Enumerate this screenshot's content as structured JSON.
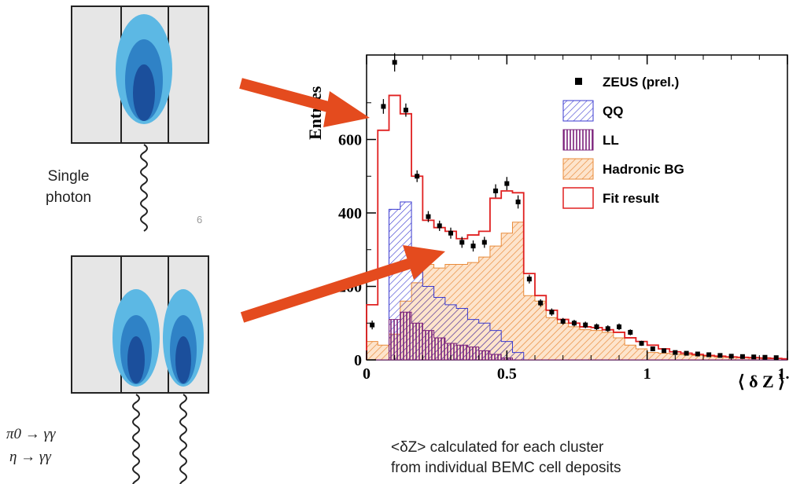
{
  "figure": {
    "single_photon_label": [
      "Single",
      "photon"
    ],
    "slide_number": "6",
    "decay_pi": "π0 → γγ",
    "decay_eta": "η → γγ",
    "caption": [
      "<δZ> calculated for each cluster",
      "from individual BEMC cell deposits"
    ]
  },
  "colors": {
    "cell_bg": "#e6e6e6",
    "blob_light": "#5cb8e4",
    "blob_mid": "#2f82c6",
    "blob_dark": "#1b4f9c",
    "arrow": "#e44b1e",
    "fit": "#e02020",
    "qq": "#3a3ad0",
    "ll": "#7a1f7a",
    "hadronic": "#e98b3a"
  },
  "chart_data": {
    "type": "histogram",
    "xlabel": "⟨ δ Z ⟩",
    "ylabel": "Entries",
    "xlim": [
      0,
      1.5
    ],
    "ylim": [
      0,
      830
    ],
    "x_ticks": [
      "0",
      "0.5",
      "1",
      "1.5"
    ],
    "y_ticks": [
      "0",
      "200",
      "400",
      "600"
    ],
    "bin_edges": [
      0,
      0.04,
      0.08,
      0.12,
      0.16,
      0.2,
      0.24,
      0.28,
      0.32,
      0.36,
      0.4,
      0.44,
      0.48,
      0.52,
      0.56,
      0.6,
      0.64,
      0.68,
      0.72,
      0.76,
      0.8,
      0.84,
      0.88,
      0.92,
      0.96,
      1.0,
      1.04,
      1.08,
      1.12,
      1.16,
      1.2,
      1.24,
      1.28,
      1.32,
      1.36,
      1.4,
      1.44,
      1.48,
      1.5
    ],
    "series": [
      {
        "name": "Hadronic BG",
        "values": [
          50,
          40,
          70,
          160,
          210,
          260,
          250,
          260,
          260,
          265,
          280,
          310,
          345,
          375,
          175,
          160,
          115,
          100,
          90,
          82,
          80,
          75,
          60,
          40,
          30,
          20,
          18,
          16,
          14,
          12,
          10,
          8,
          7,
          6,
          5,
          4,
          4,
          3
        ]
      },
      {
        "name": "QQ",
        "values": [
          0,
          0,
          410,
          430,
          270,
          200,
          170,
          150,
          140,
          110,
          100,
          80,
          50,
          20,
          0,
          0,
          0,
          0,
          0,
          0,
          0,
          0,
          0,
          0,
          0,
          0,
          0,
          0,
          0,
          0,
          0,
          0,
          0,
          0,
          0,
          0,
          0,
          0
        ]
      },
      {
        "name": "LL",
        "values": [
          0,
          0,
          110,
          130,
          100,
          80,
          60,
          45,
          40,
          35,
          25,
          15,
          5,
          0,
          0,
          0,
          0,
          0,
          0,
          0,
          0,
          0,
          0,
          0,
          0,
          0,
          0,
          0,
          0,
          0,
          0,
          0,
          0,
          0,
          0,
          0,
          0,
          0
        ]
      },
      {
        "name": "Fit result",
        "values": [
          150,
          625,
          720,
          670,
          500,
          380,
          360,
          350,
          330,
          340,
          350,
          440,
          460,
          455,
          235,
          175,
          135,
          110,
          100,
          90,
          88,
          82,
          75,
          60,
          50,
          40,
          30,
          22,
          18,
          15,
          12,
          10,
          8,
          7,
          6,
          5,
          4,
          3
        ]
      }
    ],
    "data_points": {
      "name": "ZEUS (prel.)",
      "x": [
        0.02,
        0.06,
        0.1,
        0.14,
        0.18,
        0.22,
        0.26,
        0.3,
        0.34,
        0.38,
        0.42,
        0.46,
        0.5,
        0.54,
        0.58,
        0.62,
        0.66,
        0.7,
        0.74,
        0.78,
        0.82,
        0.86,
        0.9,
        0.94,
        0.98,
        1.02,
        1.06,
        1.1,
        1.14,
        1.18,
        1.22,
        1.26,
        1.3,
        1.34,
        1.38,
        1.42,
        1.46
      ],
      "y": [
        95,
        690,
        810,
        680,
        500,
        390,
        365,
        345,
        320,
        310,
        320,
        460,
        480,
        430,
        220,
        155,
        130,
        105,
        100,
        95,
        90,
        85,
        90,
        75,
        45,
        30,
        25,
        20,
        18,
        16,
        14,
        12,
        10,
        9,
        8,
        7,
        6
      ],
      "err": [
        12,
        20,
        25,
        18,
        16,
        15,
        14,
        15,
        15,
        15,
        15,
        18,
        18,
        18,
        12,
        10,
        10,
        9,
        9,
        9,
        9,
        9,
        9,
        8,
        7,
        6,
        5,
        5,
        5,
        4,
        4,
        4,
        4,
        3,
        3,
        3,
        3
      ]
    },
    "legend": [
      {
        "label": "ZEUS (prel.)",
        "kind": "marker"
      },
      {
        "label": "QQ",
        "kind": "hatch-qq"
      },
      {
        "label": "LL",
        "kind": "hatch-ll"
      },
      {
        "label": "Hadronic BG",
        "kind": "hatch-had"
      },
      {
        "label": "Fit result",
        "kind": "line"
      }
    ],
    "legend_position": "top-right"
  }
}
